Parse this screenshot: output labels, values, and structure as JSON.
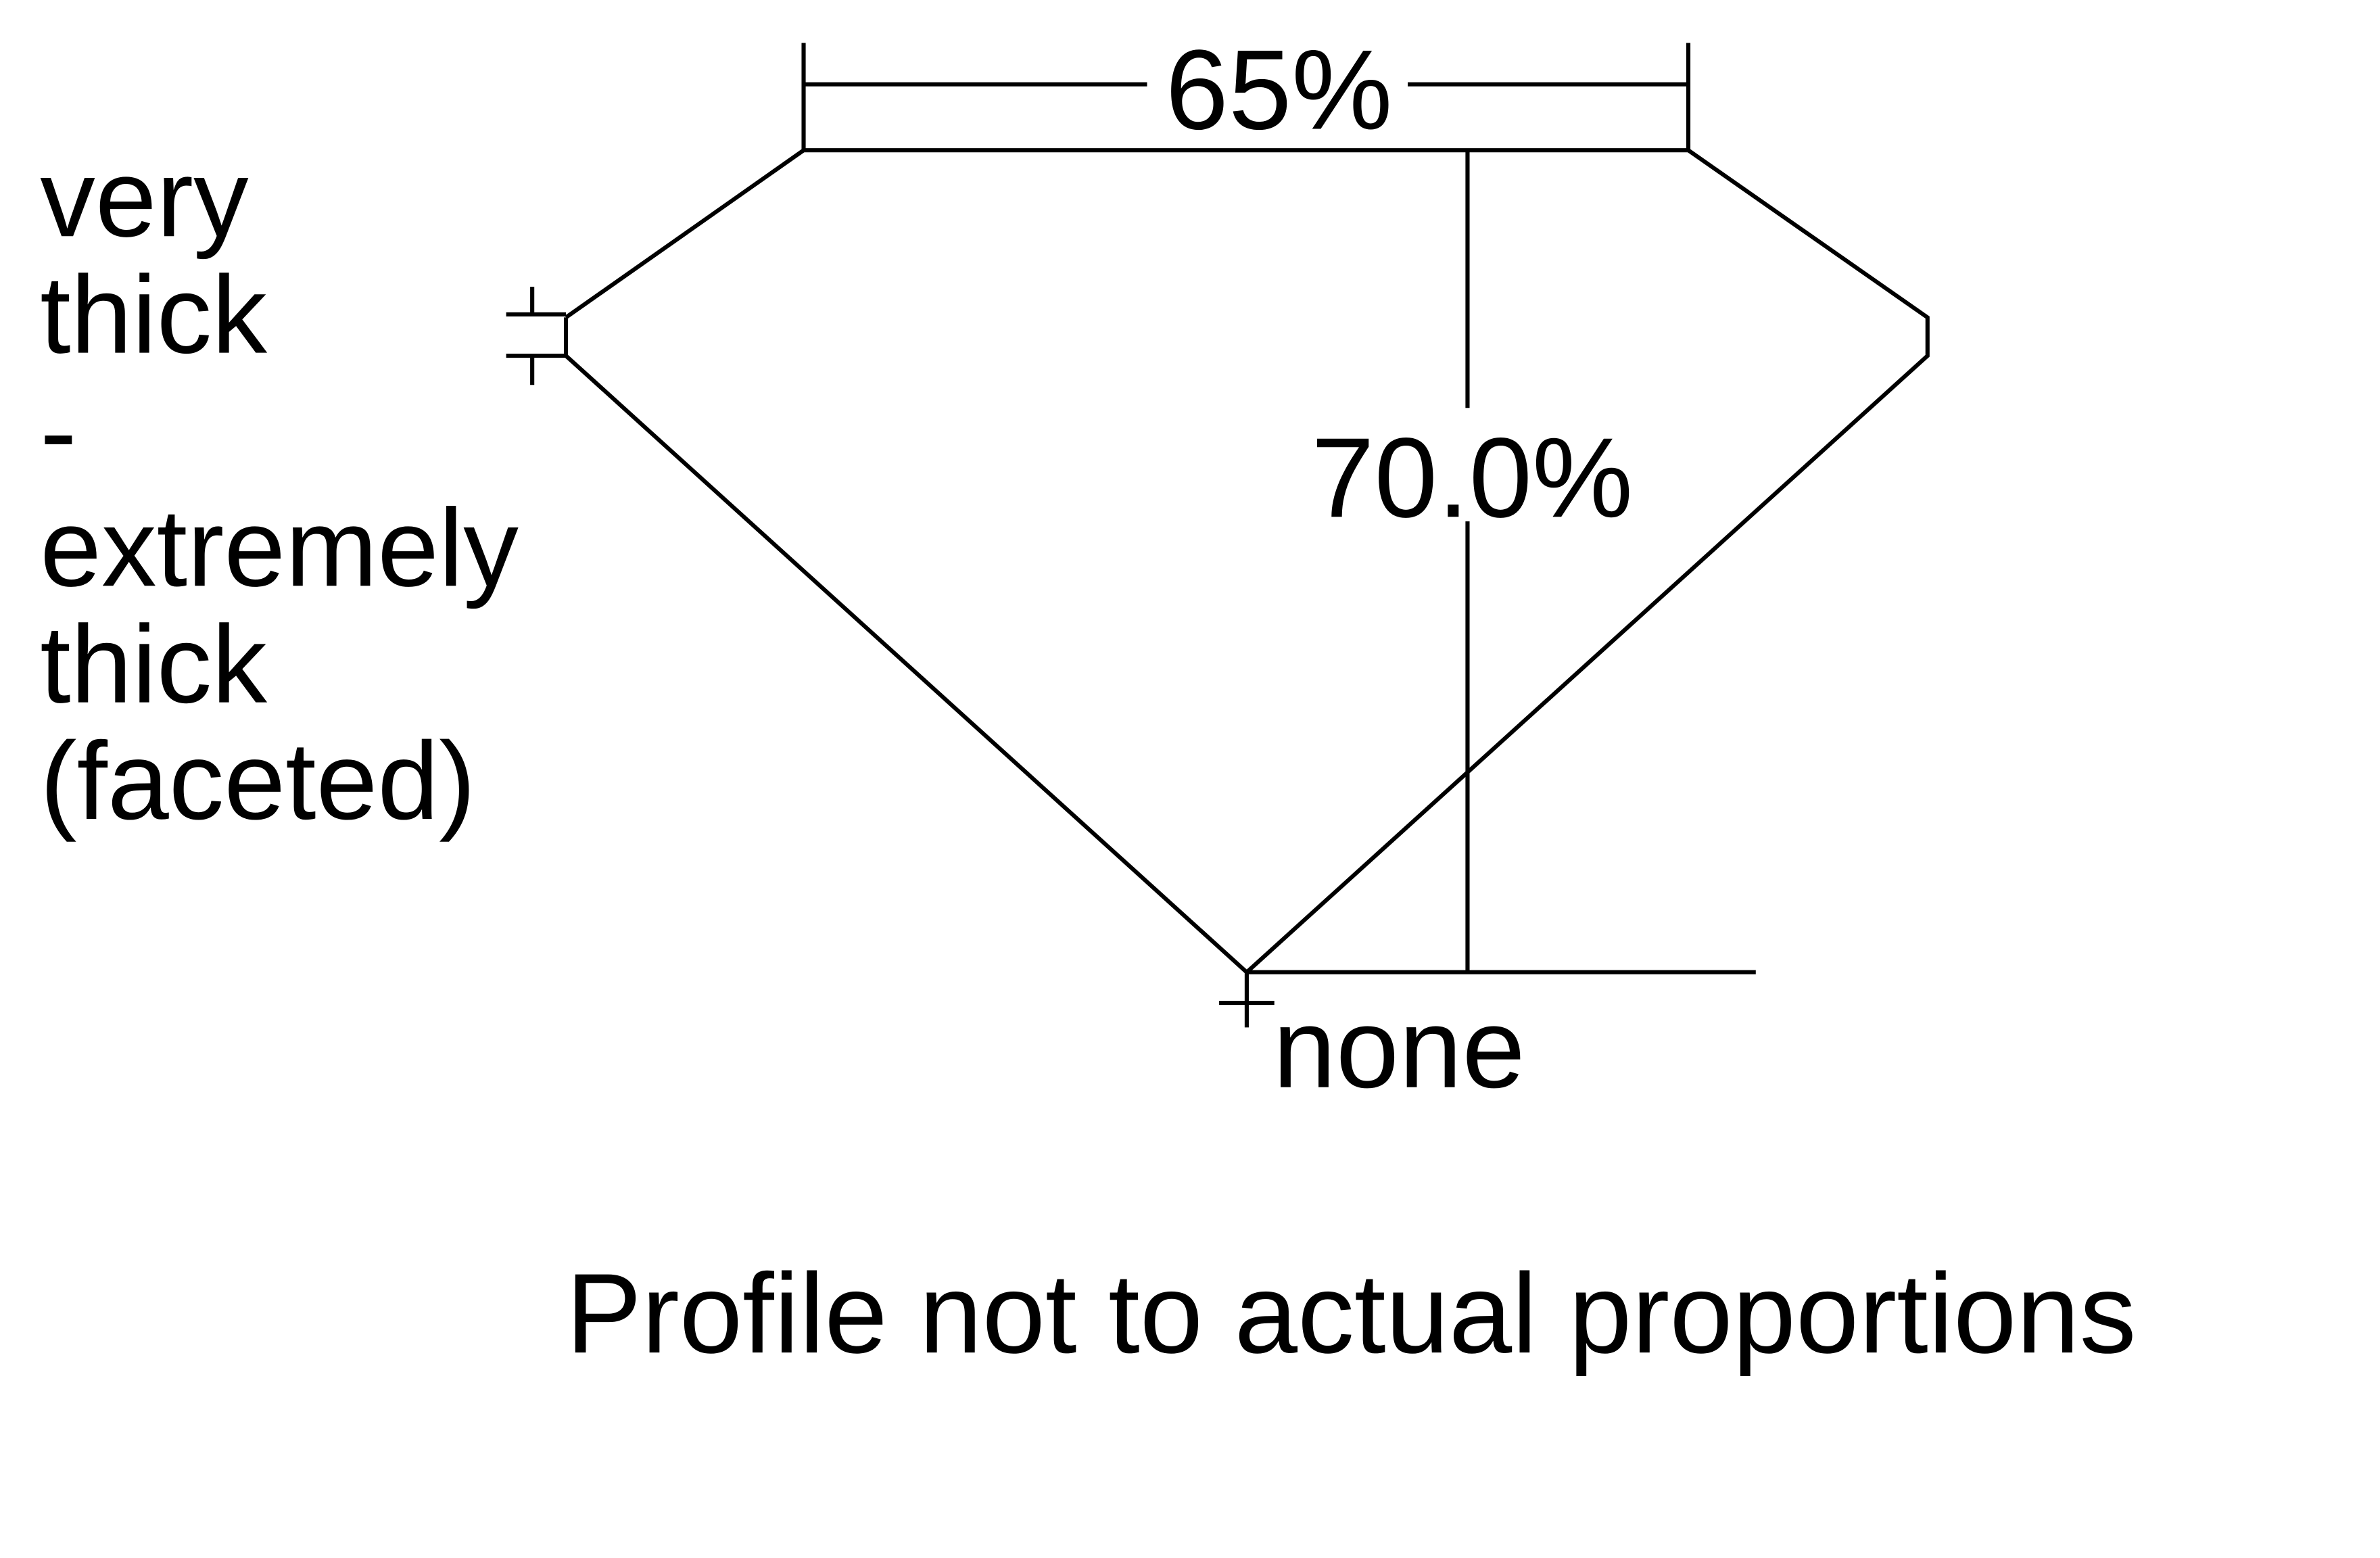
{
  "diagram": {
    "table_percent": "65%",
    "depth_percent": "70.0%",
    "culet": "none",
    "girdle_lines": [
      "very",
      "thick",
      "-",
      "extremely",
      "thick",
      "(faceted)"
    ],
    "footnote": "Profile not to actual proportions",
    "line_color": "#000000",
    "background": "#ffffff"
  }
}
